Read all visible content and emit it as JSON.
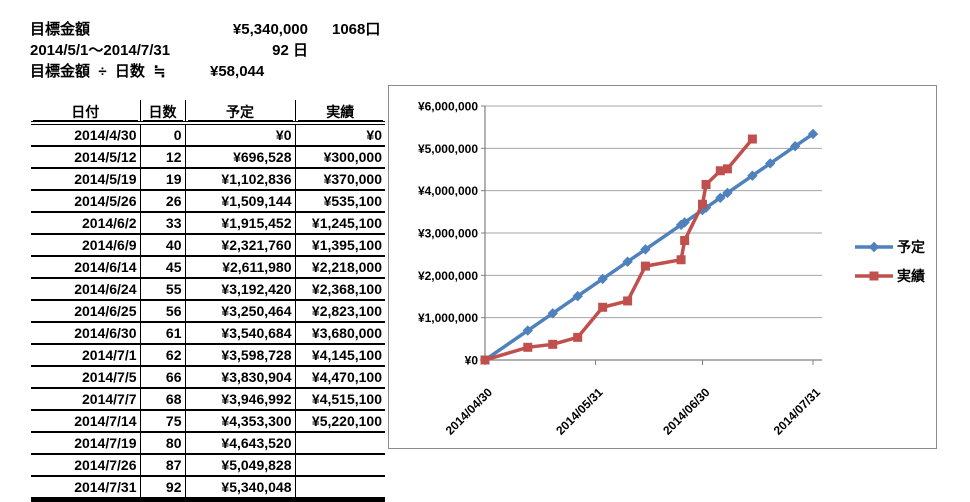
{
  "summary": {
    "goal_label": "目標金額",
    "goal_amount": "¥5,340,000",
    "goal_units": "1068口",
    "period": "2014/5/1～2014/7/31",
    "period_days": "92 日",
    "formula_label": "目標金額  ÷  日数  ≒",
    "daily_amount": "¥58,044"
  },
  "table": {
    "headers": [
      "日付",
      "日数",
      "予定",
      "実績"
    ],
    "rows": [
      [
        "2014/4/30",
        "0",
        "¥0",
        "¥0"
      ],
      [
        "2014/5/12",
        "12",
        "¥696,528",
        "¥300,000"
      ],
      [
        "2014/5/19",
        "19",
        "¥1,102,836",
        "¥370,000"
      ],
      [
        "2014/5/26",
        "26",
        "¥1,509,144",
        "¥535,100"
      ],
      [
        "2014/6/2",
        "33",
        "¥1,915,452",
        "¥1,245,100"
      ],
      [
        "2014/6/9",
        "40",
        "¥2,321,760",
        "¥1,395,100"
      ],
      [
        "2014/6/14",
        "45",
        "¥2,611,980",
        "¥2,218,000"
      ],
      [
        "2014/6/24",
        "55",
        "¥3,192,420",
        "¥2,368,100"
      ],
      [
        "2014/6/25",
        "56",
        "¥3,250,464",
        "¥2,823,100"
      ],
      [
        "2014/6/30",
        "61",
        "¥3,540,684",
        "¥3,680,000"
      ],
      [
        "2014/7/1",
        "62",
        "¥3,598,728",
        "¥4,145,100"
      ],
      [
        "2014/7/5",
        "66",
        "¥3,830,904",
        "¥4,470,100"
      ],
      [
        "2014/7/7",
        "68",
        "¥3,946,992",
        "¥4,515,100"
      ],
      [
        "2014/7/14",
        "75",
        "¥4,353,300",
        "¥5,220,100"
      ],
      [
        "2014/7/19",
        "80",
        "¥4,643,520",
        ""
      ],
      [
        "2014/7/26",
        "87",
        "¥5,049,828",
        ""
      ],
      [
        "2014/7/31",
        "92",
        "¥5,340,048",
        ""
      ]
    ]
  },
  "chart_data": {
    "type": "line",
    "title": "",
    "grid": true,
    "legend_position": "right",
    "x_axis": {
      "unit": "days since 2014/4/30",
      "labels": [
        "2014/04/30",
        "2014/05/31",
        "2014/06/30",
        "2014/07/31"
      ],
      "tick_days": [
        0,
        31,
        61,
        92
      ],
      "range_days": [
        0,
        94.5
      ]
    },
    "y_axis": {
      "min": 0,
      "max": 6000000,
      "step": 1000000,
      "tick_labels": [
        "¥0",
        "¥1,000,000",
        "¥2,000,000",
        "¥3,000,000",
        "¥4,000,000",
        "¥5,000,000",
        "¥6,000,000"
      ]
    },
    "colors": {
      "gridline": "#A6A6A6",
      "axis": "#808080",
      "chart_border": "#8C8C8C"
    },
    "series": [
      {
        "name": "予定",
        "color": "#4F81BD",
        "marker": "diamond",
        "points": [
          [
            "2014/4/30",
            0,
            0
          ],
          [
            "2014/5/12",
            12,
            696528
          ],
          [
            "2014/5/19",
            19,
            1102836
          ],
          [
            "2014/5/26",
            26,
            1509144
          ],
          [
            "2014/6/2",
            33,
            1915452
          ],
          [
            "2014/6/9",
            40,
            2321760
          ],
          [
            "2014/6/14",
            45,
            2611980
          ],
          [
            "2014/6/24",
            55,
            3192420
          ],
          [
            "2014/6/25",
            56,
            3250464
          ],
          [
            "2014/6/30",
            61,
            3540684
          ],
          [
            "2014/7/1",
            62,
            3598728
          ],
          [
            "2014/7/5",
            66,
            3830904
          ],
          [
            "2014/7/7",
            68,
            3946992
          ],
          [
            "2014/7/14",
            75,
            4353300
          ],
          [
            "2014/7/19",
            80,
            4643520
          ],
          [
            "2014/7/26",
            87,
            5049828
          ],
          [
            "2014/7/31",
            92,
            5340048
          ]
        ]
      },
      {
        "name": "実績",
        "color": "#C0504D",
        "marker": "square",
        "points": [
          [
            "2014/4/30",
            0,
            0
          ],
          [
            "2014/5/12",
            12,
            300000
          ],
          [
            "2014/5/19",
            19,
            370000
          ],
          [
            "2014/5/26",
            26,
            535100
          ],
          [
            "2014/6/2",
            33,
            1245100
          ],
          [
            "2014/6/9",
            40,
            1395100
          ],
          [
            "2014/6/14",
            45,
            2218000
          ],
          [
            "2014/6/24",
            55,
            2368100
          ],
          [
            "2014/6/25",
            56,
            2823100
          ],
          [
            "2014/6/30",
            61,
            3680000
          ],
          [
            "2014/7/1",
            62,
            4145100
          ],
          [
            "2014/7/5",
            66,
            4470100
          ],
          [
            "2014/7/7",
            68,
            4515100
          ],
          [
            "2014/7/14",
            75,
            5220100
          ]
        ]
      }
    ]
  }
}
